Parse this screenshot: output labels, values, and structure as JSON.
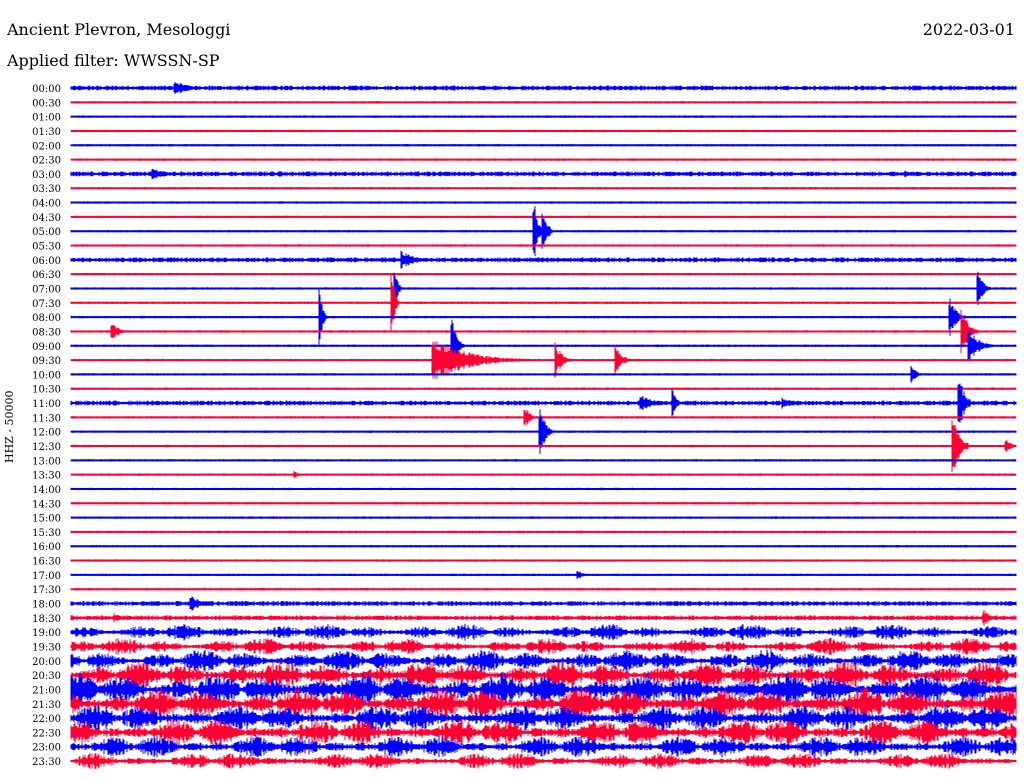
{
  "header": {
    "station_name": "Ancient Plevron, Mesologgi",
    "date": "2022-03-01",
    "filter_label": "Applied filter: WWSSN-SP",
    "channel_label": "HHZ - 50000"
  },
  "colors": {
    "blue_trace": "#0000ff",
    "red_trace": "#ff0033",
    "background": "#ffffff",
    "text": "#000000"
  },
  "chart_data": {
    "type": "helicorder",
    "row_labels": [
      "00:00",
      "00:30",
      "01:00",
      "01:30",
      "02:00",
      "02:30",
      "03:00",
      "03:30",
      "04:00",
      "04:30",
      "05:00",
      "05:30",
      "06:00",
      "06:30",
      "07:00",
      "07:30",
      "08:00",
      "08:30",
      "09:00",
      "09:30",
      "10:00",
      "10:30",
      "11:00",
      "11:30",
      "12:00",
      "12:30",
      "13:00",
      "13:30",
      "14:00",
      "14:30",
      "15:00",
      "15:30",
      "16:00",
      "16:30",
      "17:00",
      "17:30",
      "18:00",
      "18:30",
      "19:00",
      "19:30",
      "20:00",
      "20:30",
      "21:00",
      "21:30",
      "22:00",
      "22:30",
      "23:00",
      "23:30"
    ],
    "minutes_per_row": 30,
    "color_cycle": [
      "blue",
      "red"
    ],
    "noise_level_per_row": [
      2,
      1,
      1,
      1,
      1,
      1,
      2,
      1,
      1,
      1,
      1,
      1,
      2,
      1,
      1,
      1,
      1,
      1,
      1,
      1,
      1,
      1,
      2,
      1,
      1,
      1,
      1,
      1,
      1,
      1,
      1,
      1,
      1,
      1,
      1,
      1,
      2,
      2,
      3,
      3,
      4,
      5,
      6,
      6,
      5,
      5,
      4,
      3
    ],
    "events": [
      {
        "row": 0,
        "minute": 3.3,
        "amplitude": 8,
        "duration_min": 1.2
      },
      {
        "row": 0,
        "minute": 9.2,
        "amplitude": 3,
        "duration_min": 0.5
      },
      {
        "row": 6,
        "minute": 2.6,
        "amplitude": 6,
        "duration_min": 1.0
      },
      {
        "row": 6,
        "minute": 6.6,
        "amplitude": 4,
        "duration_min": 0.6
      },
      {
        "row": 6,
        "minute": 26.5,
        "amplitude": 5,
        "duration_min": 0.3
      },
      {
        "row": 10,
        "minute": 14.7,
        "amplitude": 35,
        "duration_min": 0.3
      },
      {
        "row": 10,
        "minute": 15.0,
        "amplitude": 25,
        "duration_min": 0.3
      },
      {
        "row": 12,
        "minute": 10.5,
        "amplitude": 9,
        "duration_min": 1.2
      },
      {
        "row": 14,
        "minute": 10.3,
        "amplitude": 20,
        "duration_min": 0.2
      },
      {
        "row": 14,
        "minute": 28.8,
        "amplitude": 18,
        "duration_min": 0.4
      },
      {
        "row": 15,
        "minute": 10.2,
        "amplitude": 30,
        "duration_min": 0.2
      },
      {
        "row": 16,
        "minute": 7.9,
        "amplitude": 28,
        "duration_min": 0.2
      },
      {
        "row": 16,
        "minute": 27.9,
        "amplitude": 20,
        "duration_min": 0.5
      },
      {
        "row": 17,
        "minute": 1.3,
        "amplitude": 9,
        "duration_min": 0.6
      },
      {
        "row": 17,
        "minute": 28.3,
        "amplitude": 25,
        "duration_min": 0.5
      },
      {
        "row": 18,
        "minute": 12.1,
        "amplitude": 28,
        "duration_min": 0.4
      },
      {
        "row": 18,
        "minute": 28.5,
        "amplitude": 18,
        "duration_min": 0.8
      },
      {
        "row": 19,
        "minute": 11.5,
        "amplitude": 22,
        "duration_min": 3.0
      },
      {
        "row": 19,
        "minute": 15.4,
        "amplitude": 18,
        "duration_min": 0.5
      },
      {
        "row": 19,
        "minute": 17.3,
        "amplitude": 16,
        "duration_min": 0.5
      },
      {
        "row": 20,
        "minute": 26.7,
        "amplitude": 10,
        "duration_min": 0.3
      },
      {
        "row": 22,
        "minute": 18.1,
        "amplitude": 8,
        "duration_min": 1.2
      },
      {
        "row": 22,
        "minute": 19.1,
        "amplitude": 15,
        "duration_min": 0.3
      },
      {
        "row": 22,
        "minute": 22.6,
        "amplitude": 6,
        "duration_min": 0.8
      },
      {
        "row": 22,
        "minute": 28.2,
        "amplitude": 30,
        "duration_min": 0.4
      },
      {
        "row": 23,
        "minute": 14.4,
        "amplitude": 12,
        "duration_min": 0.4
      },
      {
        "row": 24,
        "minute": 14.9,
        "amplitude": 25,
        "duration_min": 0.4
      },
      {
        "row": 25,
        "minute": 28.0,
        "amplitude": 35,
        "duration_min": 0.5
      },
      {
        "row": 25,
        "minute": 29.7,
        "amplitude": 6,
        "duration_min": 0.5
      },
      {
        "row": 27,
        "minute": 7.1,
        "amplitude": 5,
        "duration_min": 0.2
      },
      {
        "row": 34,
        "minute": 16.1,
        "amplitude": 5,
        "duration_min": 0.4
      },
      {
        "row": 36,
        "minute": 3.8,
        "amplitude": 9,
        "duration_min": 0.8
      },
      {
        "row": 37,
        "minute": 1.4,
        "amplitude": 5,
        "duration_min": 0.5
      },
      {
        "row": 37,
        "minute": 29.0,
        "amplitude": 8,
        "duration_min": 0.6
      }
    ]
  }
}
